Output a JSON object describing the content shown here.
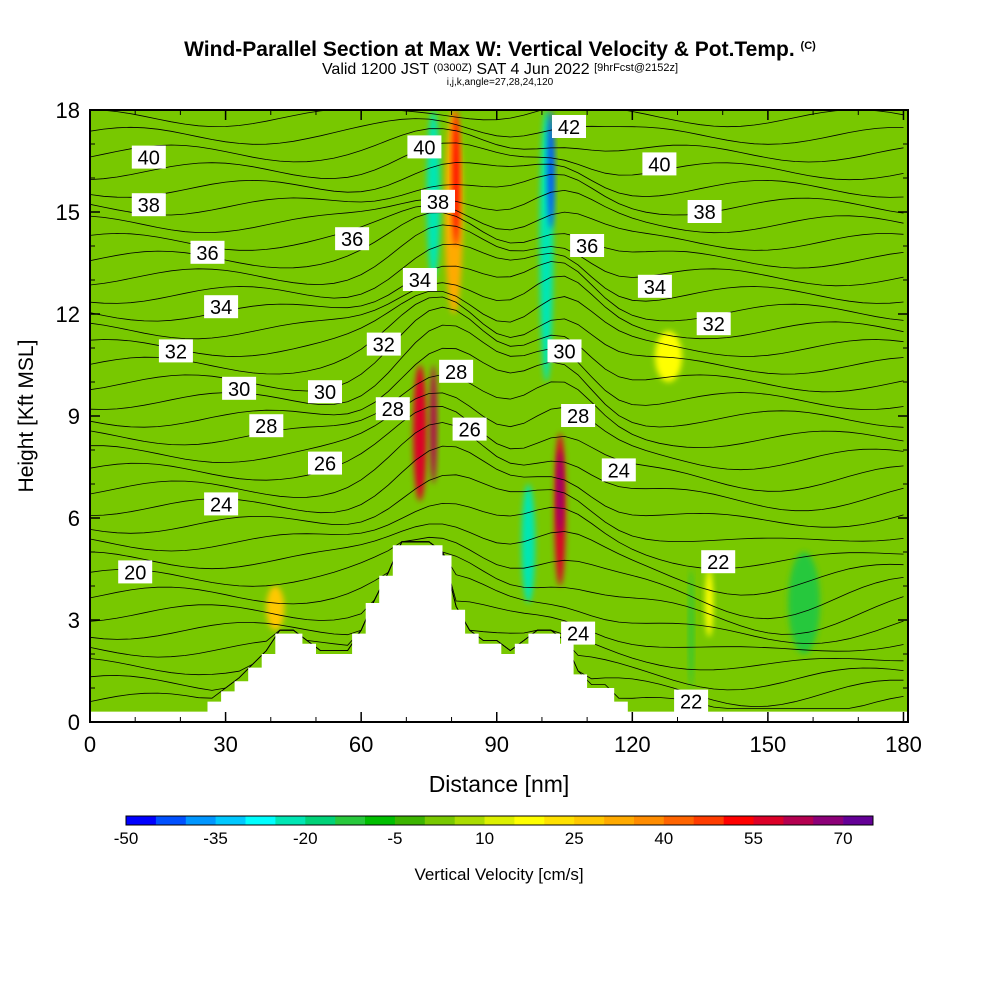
{
  "header": {
    "title": "Wind-Parallel Section at Max W: Vertical Velocity & Pot.Temp.",
    "title_mark": "(C)",
    "valid_prefix": "Valid 1200 JST",
    "valid_utc": "(0300Z)",
    "valid_date": "SAT 4 Jun 2022",
    "forecast": "[9hrFcst@2152z]",
    "params": "i,j,k,angle=27,28,24,120"
  },
  "chart_data": {
    "type": "heatmap",
    "xlabel": "Distance [nm]",
    "ylabel": "Height [Kft MSL]",
    "xlim": [
      0,
      181
    ],
    "ylim": [
      0,
      18
    ],
    "x_ticks": [
      "0",
      "30",
      "60",
      "90",
      "120",
      "150",
      "180"
    ],
    "y_ticks": [
      "0",
      "3",
      "6",
      "9",
      "12",
      "15",
      "18"
    ],
    "colorbar": {
      "label": "Vertical Velocity [cm/s]",
      "tick_labels": [
        "-50",
        "-35",
        "-20",
        "-5",
        "10",
        "25",
        "40",
        "55",
        "70"
      ],
      "colors": [
        "#0000ff",
        "#0050ff",
        "#0096ff",
        "#00c8ff",
        "#00ffff",
        "#00e6b4",
        "#00d278",
        "#28c83c",
        "#00be00",
        "#3cb400",
        "#78c800",
        "#aadc00",
        "#dcf000",
        "#ffff00",
        "#ffe100",
        "#ffc800",
        "#ffaa00",
        "#ff8c00",
        "#ff6400",
        "#ff3c00",
        "#ff0000",
        "#dc0028",
        "#b40050",
        "#8c0078",
        "#640096"
      ]
    },
    "terrain": [
      [
        0,
        0.3
      ],
      [
        26,
        0.3
      ],
      [
        26,
        0.6
      ],
      [
        29,
        0.6
      ],
      [
        29,
        0.9
      ],
      [
        32,
        0.9
      ],
      [
        32,
        1.2
      ],
      [
        35,
        1.2
      ],
      [
        35,
        1.6
      ],
      [
        38,
        1.6
      ],
      [
        38,
        2.0
      ],
      [
        41,
        2.0
      ],
      [
        41,
        2.6
      ],
      [
        47,
        2.6
      ],
      [
        47,
        2.3
      ],
      [
        50,
        2.3
      ],
      [
        50,
        2.0
      ],
      [
        58,
        2.0
      ],
      [
        58,
        2.6
      ],
      [
        61,
        2.6
      ],
      [
        61,
        3.5
      ],
      [
        64,
        3.5
      ],
      [
        64,
        4.3
      ],
      [
        67,
        4.3
      ],
      [
        67,
        5.2
      ],
      [
        78,
        5.2
      ],
      [
        78,
        4.9
      ],
      [
        80,
        4.9
      ],
      [
        80,
        3.3
      ],
      [
        83,
        3.3
      ],
      [
        83,
        2.6
      ],
      [
        86,
        2.6
      ],
      [
        86,
        2.3
      ],
      [
        91,
        2.3
      ],
      [
        91,
        2.0
      ],
      [
        94,
        2.0
      ],
      [
        94,
        2.3
      ],
      [
        97,
        2.3
      ],
      [
        97,
        2.6
      ],
      [
        104,
        2.6
      ],
      [
        104,
        2.3
      ],
      [
        107,
        2.3
      ],
      [
        107,
        1.4
      ],
      [
        110,
        1.4
      ],
      [
        110,
        1.0
      ],
      [
        116,
        1.0
      ],
      [
        116,
        0.6
      ],
      [
        119,
        0.6
      ],
      [
        119,
        0.3
      ],
      [
        181,
        0.3
      ]
    ],
    "velocity_features": [
      {
        "x": 73,
        "y0": 6.5,
        "y1": 10.5,
        "w": 3,
        "value": 55
      },
      {
        "x": 76,
        "y0": 7.0,
        "y1": 10.5,
        "w": 1.5,
        "value": 60
      },
      {
        "x": 80.5,
        "y0": 12,
        "y1": 18,
        "w": 4,
        "value": 30
      },
      {
        "x": 81,
        "y0": 14,
        "y1": 18,
        "w": 1.5,
        "value": 50
      },
      {
        "x": 76,
        "y0": 13,
        "y1": 18,
        "w": 3,
        "value": -25
      },
      {
        "x": 104,
        "y0": 4,
        "y1": 8.5,
        "w": 2.5,
        "value": 55
      },
      {
        "x": 104,
        "y0": 5.5,
        "y1": 8,
        "w": 1.2,
        "value": 65
      },
      {
        "x": 101,
        "y0": 10,
        "y1": 18,
        "w": 3,
        "value": -25
      },
      {
        "x": 102,
        "y0": 14.5,
        "y1": 18,
        "w": 1.5,
        "value": -45
      },
      {
        "x": 97,
        "y0": 3.5,
        "y1": 7,
        "w": 3,
        "value": -22
      },
      {
        "x": 41,
        "y0": 2.7,
        "y1": 4,
        "w": 4,
        "value": 25
      },
      {
        "x": 137,
        "y0": 2.5,
        "y1": 4.5,
        "w": 1.8,
        "value": 18
      },
      {
        "x": 133,
        "y0": 1,
        "y1": 4.5,
        "w": 1,
        "value": -12
      },
      {
        "x": 158,
        "y0": 2,
        "y1": 5,
        "w": 7,
        "value": -15
      },
      {
        "x": 128,
        "y0": 10,
        "y1": 11.5,
        "w": 6,
        "value": 15
      }
    ],
    "isentrope_labels": [
      {
        "text": "40",
        "x": 13,
        "y": 16.6
      },
      {
        "text": "38",
        "x": 13,
        "y": 15.2
      },
      {
        "text": "36",
        "x": 26,
        "y": 13.8
      },
      {
        "text": "34",
        "x": 29,
        "y": 12.2
      },
      {
        "text": "32",
        "x": 19,
        "y": 10.9
      },
      {
        "text": "30",
        "x": 33,
        "y": 9.8
      },
      {
        "text": "28",
        "x": 39,
        "y": 8.7
      },
      {
        "text": "24",
        "x": 29,
        "y": 6.4
      },
      {
        "text": "20",
        "x": 10,
        "y": 4.4
      },
      {
        "text": "36",
        "x": 58,
        "y": 14.2
      },
      {
        "text": "32",
        "x": 65,
        "y": 11.1
      },
      {
        "text": "30",
        "x": 52,
        "y": 9.7
      },
      {
        "text": "26",
        "x": 52,
        "y": 7.6
      },
      {
        "text": "28",
        "x": 67,
        "y": 9.2
      },
      {
        "text": "34",
        "x": 73,
        "y": 13.0
      },
      {
        "text": "38",
        "x": 77,
        "y": 15.3
      },
      {
        "text": "40",
        "x": 74,
        "y": 16.9
      },
      {
        "text": "28",
        "x": 81,
        "y": 10.3
      },
      {
        "text": "26",
        "x": 84,
        "y": 8.6
      },
      {
        "text": "42",
        "x": 106,
        "y": 17.5
      },
      {
        "text": "36",
        "x": 110,
        "y": 14.0
      },
      {
        "text": "30",
        "x": 105,
        "y": 10.9
      },
      {
        "text": "28",
        "x": 108,
        "y": 9.0
      },
      {
        "text": "24",
        "x": 117,
        "y": 7.4
      },
      {
        "text": "40",
        "x": 126,
        "y": 16.4
      },
      {
        "text": "38",
        "x": 136,
        "y": 15.0
      },
      {
        "text": "34",
        "x": 125,
        "y": 12.8
      },
      {
        "text": "32",
        "x": 138,
        "y": 11.7
      },
      {
        "text": "22",
        "x": 139,
        "y": 4.7
      },
      {
        "text": "24",
        "x": 108,
        "y": 2.6
      },
      {
        "text": "22",
        "x": 133,
        "y": 0.6
      }
    ]
  }
}
